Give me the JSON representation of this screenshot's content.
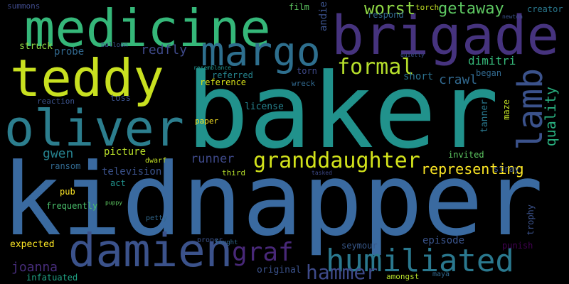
{
  "words": [
    {
      "text": "kidnapper",
      "color": "#3a6aa0",
      "vertical": false
    },
    {
      "text": "baker",
      "color": "#21928c",
      "vertical": false
    },
    {
      "text": "brigade",
      "color": "#46337e",
      "vertical": false
    },
    {
      "text": "medicine",
      "color": "#35b779",
      "vertical": false
    },
    {
      "text": "teddy",
      "color": "#c8e020",
      "vertical": false
    },
    {
      "text": "oliver",
      "color": "#2c7e8e",
      "vertical": false
    },
    {
      "text": "margo",
      "color": "#2e6f8e",
      "vertical": false
    },
    {
      "text": "damien",
      "color": "#3b528b",
      "vertical": false
    },
    {
      "text": "humiliated",
      "color": "#2a788e",
      "vertical": false
    },
    {
      "text": "granddaughter",
      "color": "#d2e21b",
      "vertical": false
    },
    {
      "text": "lamb",
      "color": "#3b528b",
      "vertical": true
    },
    {
      "text": "formal",
      "color": "#b5de2b",
      "vertical": false
    },
    {
      "text": "graf",
      "color": "#482878",
      "vertical": false
    },
    {
      "text": "hammer",
      "color": "#3e4a89",
      "vertical": false
    },
    {
      "text": "worst",
      "color": "#8fd744",
      "vertical": false
    },
    {
      "text": "getaway",
      "color": "#5ec962",
      "vertical": false
    },
    {
      "text": "representing",
      "color": "#fde725",
      "vertical": false
    },
    {
      "text": "redfly",
      "color": "#3e4989",
      "vertical": false
    },
    {
      "text": "crawl",
      "color": "#31688e",
      "vertical": false
    },
    {
      "text": "dimitri",
      "color": "#35b779",
      "vertical": false
    },
    {
      "text": "quality",
      "color": "#29af7f",
      "vertical": true
    },
    {
      "text": "runner",
      "color": "#3e4989",
      "vertical": false
    },
    {
      "text": "gwen",
      "color": "#26828e",
      "vertical": false
    },
    {
      "text": "joanna",
      "color": "#472d7b",
      "vertical": false
    },
    {
      "text": "license",
      "color": "#26828e",
      "vertical": false
    },
    {
      "text": "picture",
      "color": "#b8de29",
      "vertical": false
    },
    {
      "text": "probe",
      "color": "#31688e",
      "vertical": false
    },
    {
      "text": "struck",
      "color": "#90d743",
      "vertical": false
    },
    {
      "text": "television",
      "color": "#3b528b",
      "vertical": false
    },
    {
      "text": "episode",
      "color": "#3a548c",
      "vertical": false
    },
    {
      "text": "expected",
      "color": "#fde725",
      "vertical": false
    },
    {
      "text": "film",
      "color": "#5ec962",
      "vertical": false
    },
    {
      "text": "andie",
      "color": "#3b528b",
      "vertical": true
    },
    {
      "text": "short",
      "color": "#2c728e",
      "vertical": false
    },
    {
      "text": "reference",
      "color": "#d8e219",
      "vertical": false
    },
    {
      "text": "referred",
      "color": "#25848e",
      "vertical": false
    },
    {
      "text": "torn",
      "color": "#3e4989",
      "vertical": false
    },
    {
      "text": "began",
      "color": "#31688e",
      "vertical": false
    },
    {
      "text": "tanner",
      "color": "#2a788e",
      "vertical": true
    },
    {
      "text": "maze",
      "color": "#c0df25",
      "vertical": true
    },
    {
      "text": "invited",
      "color": "#5ec962",
      "vertical": false
    },
    {
      "text": "stray",
      "color": "#3b528b",
      "vertical": false
    },
    {
      "text": "ransom",
      "color": "#31688e",
      "vertical": false
    },
    {
      "text": "pub",
      "color": "#fde725",
      "vertical": false
    },
    {
      "text": "act",
      "color": "#21918c",
      "vertical": false
    },
    {
      "text": "frequently",
      "color": "#4ac16d",
      "vertical": false
    },
    {
      "text": "seymour",
      "color": "#38598c",
      "vertical": false
    },
    {
      "text": "original",
      "color": "#3b528b",
      "vertical": false
    },
    {
      "text": "infatuated",
      "color": "#20a486",
      "vertical": false
    },
    {
      "text": "third",
      "color": "#b5de2b",
      "vertical": false
    },
    {
      "text": "toss",
      "color": "#3b528b",
      "vertical": false
    },
    {
      "text": "respond",
      "color": "#31688e",
      "vertical": false
    },
    {
      "text": "creator",
      "color": "#2a788e",
      "vertical": false
    },
    {
      "text": "summons",
      "color": "#3e4989",
      "vertical": false
    },
    {
      "text": "trophy",
      "color": "#3b528b",
      "vertical": true
    },
    {
      "text": "punish",
      "color": "#440154",
      "vertical": false
    },
    {
      "text": "wreck",
      "color": "#31688e",
      "vertical": false
    },
    {
      "text": "reaction",
      "color": "#3b528b",
      "vertical": false
    },
    {
      "text": "torch",
      "color": "#c2df23",
      "vertical": false
    },
    {
      "text": "paper",
      "color": "#fde725",
      "vertical": false
    },
    {
      "text": "dwarf",
      "color": "#c2df23",
      "vertical": false
    },
    {
      "text": "petty",
      "color": "#31688e",
      "vertical": false
    },
    {
      "text": "balloon",
      "color": "#3b528b",
      "vertical": false
    },
    {
      "text": "amongst",
      "color": "#b5de2b",
      "vertical": false
    },
    {
      "text": "maya",
      "color": "#31688e",
      "vertical": false
    },
    {
      "text": "proper",
      "color": "#3b528b",
      "vertical": false
    },
    {
      "text": "fought",
      "color": "#31688e",
      "vertical": false
    },
    {
      "text": "resemblance",
      "color": "#21918c",
      "vertical": false
    },
    {
      "text": "newton",
      "color": "#3b528b",
      "vertical": false
    },
    {
      "text": "quietly",
      "color": "#3b528b",
      "vertical": false
    },
    {
      "text": "tasked",
      "color": "#3e4989",
      "vertical": false
    },
    {
      "text": "puppy",
      "color": "#5ec962",
      "vertical": false
    }
  ]
}
